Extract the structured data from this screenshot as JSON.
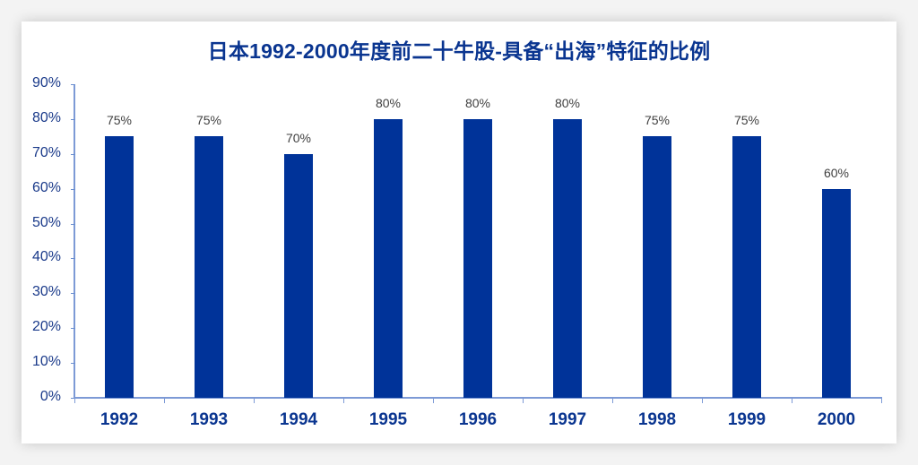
{
  "chart_data": {
    "type": "bar",
    "title": "日本1992-2000年度前二十牛股-具备“出海”特征的比例",
    "xlabel": "",
    "ylabel": "",
    "categories": [
      "1992",
      "1993",
      "1994",
      "1995",
      "1996",
      "1997",
      "1998",
      "1999",
      "2000"
    ],
    "values": [
      75,
      75,
      70,
      80,
      80,
      80,
      75,
      75,
      60
    ],
    "data_labels": [
      "75%",
      "75%",
      "70%",
      "80%",
      "80%",
      "80%",
      "75%",
      "75%",
      "60%"
    ],
    "ylim": [
      0,
      90
    ],
    "yticks": [
      "0%",
      "10%",
      "20%",
      "30%",
      "40%",
      "50%",
      "60%",
      "70%",
      "80%",
      "90%"
    ],
    "grid": false,
    "legend": null,
    "bar_color": "#003399"
  }
}
